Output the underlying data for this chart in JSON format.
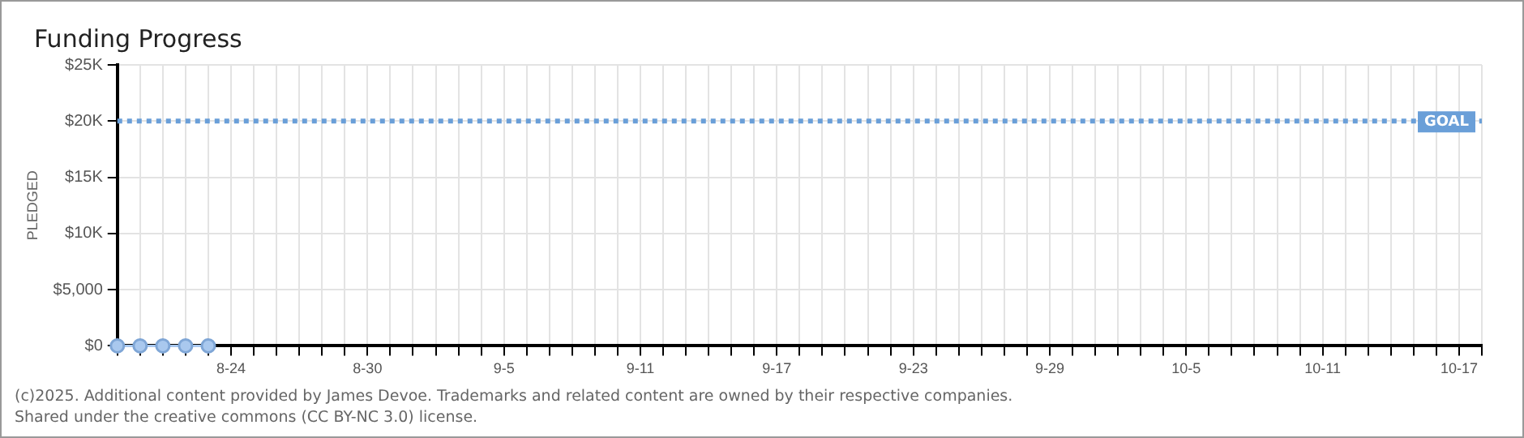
{
  "chart_data": {
    "type": "line",
    "title": "Funding Progress",
    "ylabel": "PLEDGED",
    "categories": [
      null,
      null,
      null,
      null,
      null,
      "8-24",
      null,
      null,
      null,
      null,
      null,
      "8-30",
      null,
      null,
      null,
      null,
      null,
      "9-5",
      null,
      null,
      null,
      null,
      null,
      "9-11",
      null,
      null,
      null,
      null,
      null,
      "9-17",
      null,
      null,
      null,
      null,
      null,
      "9-23",
      null,
      null,
      null,
      null,
      null,
      "9-29",
      null,
      null,
      null,
      null,
      null,
      "10-5",
      null,
      null,
      null,
      null,
      null,
      "10-11",
      null,
      null,
      null,
      null,
      null,
      "10-17",
      null
    ],
    "series": [
      {
        "color": "#a9c8ee",
        "values": [
          0,
          0,
          0,
          0,
          0,
          null,
          null,
          null,
          null,
          null,
          null,
          null,
          null,
          null,
          null,
          null,
          null,
          null,
          null,
          null,
          null,
          null,
          null,
          null,
          null,
          null,
          null,
          null,
          null,
          null,
          null,
          null,
          null,
          null,
          null,
          null,
          null,
          null,
          null,
          null,
          null,
          null,
          null,
          null,
          null,
          null,
          null,
          null,
          null,
          null,
          null,
          null,
          null,
          null,
          null,
          null,
          null,
          null,
          null,
          null,
          null
        ]
      }
    ],
    "ylim": [
      0,
      25000
    ],
    "yticks": [
      {
        "value": 0,
        "label": "$0"
      },
      {
        "value": 5000,
        "label": "$5,000"
      },
      {
        "value": 10000,
        "label": "$10K"
      },
      {
        "value": 15000,
        "label": "$15K"
      },
      {
        "value": 20000,
        "label": "$20K"
      },
      {
        "value": 25000,
        "label": "$25K"
      }
    ],
    "ref_lines": [
      {
        "axis": "y",
        "value": 20000,
        "label": "GOAL",
        "color": "#6a9fd8",
        "line_style": "dotted"
      }
    ],
    "grid": true,
    "legend": false,
    "marker": "circle",
    "line_style": "solid",
    "annotations": [
      "(c)2025. Additional content provided by James Devoe. Trademarks and related content are owned by their respective companies.",
      "Shared under the creative commons (CC BY-NC 3.0) license."
    ]
  }
}
